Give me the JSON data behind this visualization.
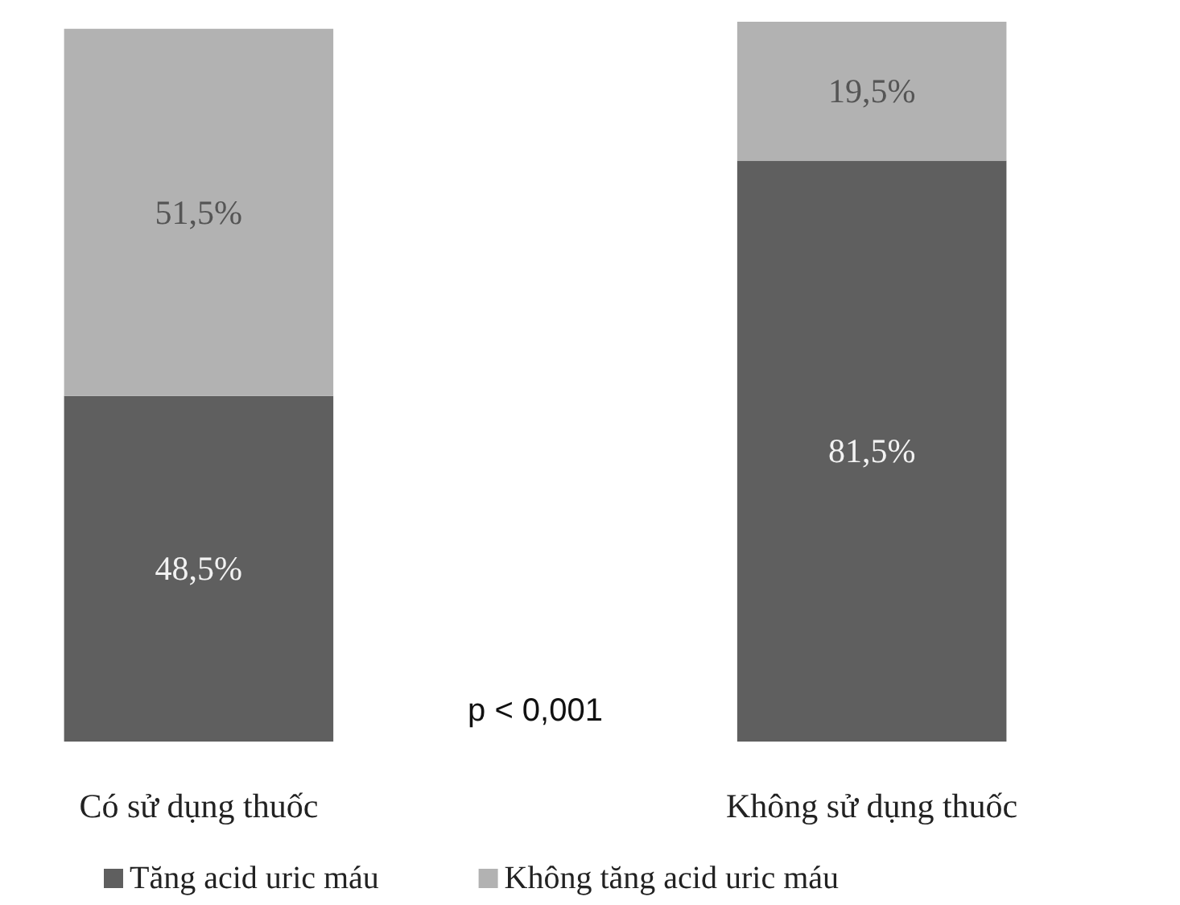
{
  "chart_data": {
    "type": "bar",
    "stacked": true,
    "categories": [
      "Có sử dụng thuốc",
      "Không sử dụng thuốc"
    ],
    "series": [
      {
        "name": "Tăng acid uric máu",
        "color": "#5f5f5f",
        "values": [
          48.5,
          81.5
        ],
        "value_labels": [
          "48,5%",
          "81,5%"
        ]
      },
      {
        "name": "Không tăng acid uric máu",
        "color": "#b2b2b2",
        "values": [
          51.5,
          19.5
        ],
        "value_labels": [
          "51,5%",
          "19,5%"
        ]
      }
    ],
    "annotations": [
      "p < 0,001"
    ],
    "legend": "bottom",
    "grid": false
  }
}
